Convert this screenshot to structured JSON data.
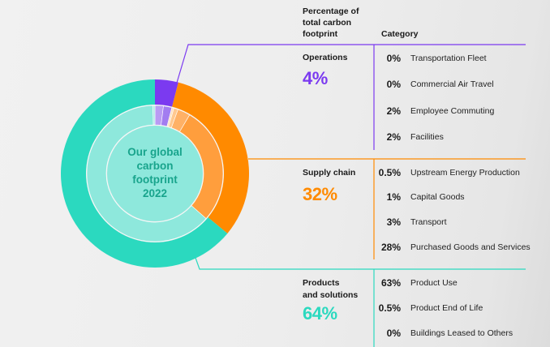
{
  "headers": {
    "percentage": [
      "Percentage of",
      "total carbon",
      "footprint"
    ],
    "category": "Category"
  },
  "center_title": [
    "Our global",
    "carbon",
    "footprint",
    "2022"
  ],
  "colors": {
    "operations": "#7b3af0",
    "supply_chain": "#ff8a00",
    "products": "#2bd9bf",
    "operations_light": "#c9b4f8",
    "supply_light": "#ffb166",
    "products_light": "#8ee8dc"
  },
  "chart_data": {
    "type": "pie",
    "title": "Our global carbon footprint 2022",
    "outer_ring": [
      {
        "name": "Operations",
        "value": 4
      },
      {
        "name": "Supply chain",
        "value": 32
      },
      {
        "name": "Products and solutions",
        "value": 64
      }
    ],
    "sections": [
      {
        "key": "operations",
        "name_lines": [
          "Operations"
        ],
        "percent": "4%",
        "rows": [
          {
            "pct": "0%",
            "value": 0,
            "category": "Transportation Fleet"
          },
          {
            "pct": "0%",
            "value": 0,
            "category": "Commercial Air Travel"
          },
          {
            "pct": "2%",
            "value": 2,
            "category": "Employee Commuting"
          },
          {
            "pct": "2%",
            "value": 2,
            "category": "Facilities"
          }
        ]
      },
      {
        "key": "supply_chain",
        "name_lines": [
          "Supply chain"
        ],
        "percent": "32%",
        "rows": [
          {
            "pct": "0.5%",
            "value": 0.5,
            "category": "Upstream Energy Production"
          },
          {
            "pct": "1%",
            "value": 1,
            "category": "Capital Goods"
          },
          {
            "pct": "3%",
            "value": 3,
            "category": "Transport"
          },
          {
            "pct": "28%",
            "value": 28,
            "category": "Purchased Goods and Services"
          }
        ]
      },
      {
        "key": "products",
        "name_lines": [
          "Products",
          "and solutions"
        ],
        "percent": "64%",
        "rows": [
          {
            "pct": "63%",
            "value": 63,
            "category": "Product Use"
          },
          {
            "pct": "0.5%",
            "value": 0.5,
            "category": "Product End of Life"
          },
          {
            "pct": "0%",
            "value": 0,
            "category": "Buildings Leased to Others"
          }
        ]
      }
    ]
  }
}
